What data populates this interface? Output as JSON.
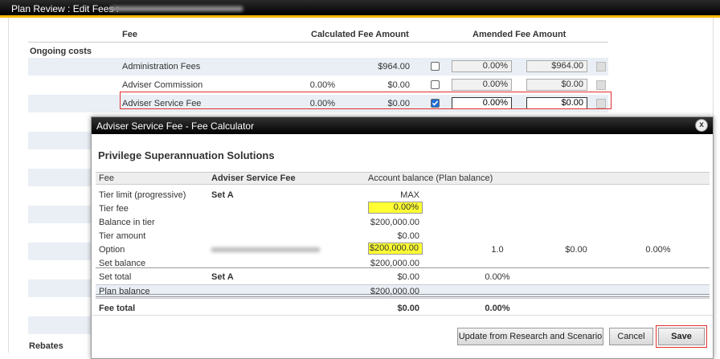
{
  "header": {
    "title": "Plan Review : Edit Fees :"
  },
  "fees_table": {
    "columns": [
      "Fee",
      "Calculated Fee Amount",
      "Amended Fee Amount"
    ],
    "sections": [
      "Ongoing costs",
      "Rebates"
    ],
    "rows": [
      {
        "name": "Administration Fees",
        "calc": "$964.00",
        "checked": false,
        "amended_pct": "0.00%",
        "amended_amt": "$964.00",
        "editable": false
      },
      {
        "name": "Adviser Commission",
        "pct": "0.00%",
        "calc": "$0.00",
        "checked": false,
        "amended_pct": "0.00%",
        "amended_amt": "$0.00",
        "editable": false
      },
      {
        "name": "Adviser Service Fee",
        "pct": "0.00%",
        "calc": "$0.00",
        "checked": true,
        "amended_pct": "0.00%",
        "amended_amt": "$0.00",
        "editable": true
      }
    ]
  },
  "dialog": {
    "title": "Adviser Service Fee - Fee Calculator",
    "heading": "Privilege Superannuation Solutions",
    "columns": [
      "Fee",
      "Adviser Service Fee",
      "Account balance (Plan balance)"
    ],
    "rows": [
      {
        "label": "Tier limit (progressive)",
        "set": "Set A",
        "balance": "MAX",
        "balance_align": "center"
      },
      {
        "label": "Tier fee",
        "balance": "0.00%",
        "input": true
      },
      {
        "label": "Balance in tier",
        "balance": "$200,000.00"
      },
      {
        "label": "Tier amount",
        "balance": "$0.00"
      },
      {
        "label": "Option",
        "balance": "$200,000.00",
        "input": true,
        "extra": [
          "1.0",
          "$0.00",
          "0.00%"
        ],
        "blurred": true
      },
      {
        "label": "Set balance",
        "balance": "$200,000.00"
      },
      {
        "label": "Set total",
        "set": "Set A",
        "balance": "$0.00",
        "extra": [
          "0.00%"
        ],
        "rule_above": true
      },
      {
        "label": "Plan balance",
        "balance": "$200,000.00",
        "shaded": true
      },
      {
        "label": "Fee total",
        "balance": "$0.00",
        "extra": [
          "0.00%"
        ],
        "bold": true,
        "double_rule": true
      }
    ],
    "buttons": [
      "Update from Research and Scenario",
      "Cancel",
      "Save"
    ]
  }
}
